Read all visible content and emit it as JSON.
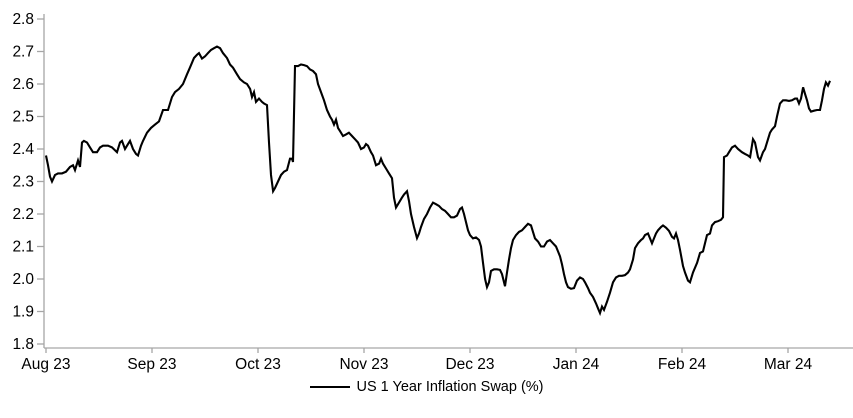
{
  "chart_data": {
    "type": "line",
    "title": "",
    "xlabel": "",
    "ylabel": "",
    "grid": false,
    "legend_position": "bottom-center",
    "axis_color": "#a6a6a6",
    "line_color": "#000000",
    "background_color": "#ffffff",
    "ylim": [
      1.8,
      2.8
    ],
    "y_tick_labels": [
      "1.8",
      "1.9",
      "2.0",
      "2.1",
      "2.2",
      "2.3",
      "2.4",
      "2.5",
      "2.6",
      "2.7",
      "2.8"
    ],
    "y_tick_values": [
      1.8,
      1.9,
      2.0,
      2.1,
      2.2,
      2.3,
      2.4,
      2.5,
      2.6,
      2.7,
      2.8
    ],
    "x_axis_unit": "months since Aug 2023",
    "x_range_months": [
      0,
      7.62
    ],
    "x_tick_positions_months": [
      0,
      1,
      2,
      3,
      4,
      5,
      6,
      7
    ],
    "x_tick_labels": [
      "Aug 23",
      "Sep 23",
      "Oct 23",
      "Nov 23",
      "Dec 23",
      "Jan 24",
      "Feb 24",
      "Mar 24"
    ],
    "series": [
      {
        "name": "US 1 Year Inflation Swap (%)",
        "color": "#000000",
        "points": [
          [
            0,
            2.38
          ],
          [
            0.019,
            2.35
          ],
          [
            0.038,
            2.315
          ],
          [
            0.057,
            2.3
          ],
          [
            0.085,
            2.32
          ],
          [
            0.113,
            2.325
          ],
          [
            0.151,
            2.325
          ],
          [
            0.189,
            2.33
          ],
          [
            0.226,
            2.345
          ],
          [
            0.255,
            2.35
          ],
          [
            0.274,
            2.335
          ],
          [
            0.302,
            2.365
          ],
          [
            0.321,
            2.345
          ],
          [
            0.34,
            2.42
          ],
          [
            0.358,
            2.425
          ],
          [
            0.387,
            2.42
          ],
          [
            0.415,
            2.405
          ],
          [
            0.443,
            2.39
          ],
          [
            0.481,
            2.39
          ],
          [
            0.509,
            2.405
          ],
          [
            0.538,
            2.41
          ],
          [
            0.585,
            2.41
          ],
          [
            0.623,
            2.405
          ],
          [
            0.67,
            2.39
          ],
          [
            0.698,
            2.42
          ],
          [
            0.717,
            2.425
          ],
          [
            0.745,
            2.4
          ],
          [
            0.774,
            2.415
          ],
          [
            0.792,
            2.425
          ],
          [
            0.821,
            2.4
          ],
          [
            0.849,
            2.385
          ],
          [
            0.868,
            2.38
          ],
          [
            0.896,
            2.41
          ],
          [
            0.915,
            2.425
          ],
          [
            0.953,
            2.45
          ],
          [
            0.991,
            2.465
          ],
          [
            1.028,
            2.475
          ],
          [
            1.066,
            2.485
          ],
          [
            1.104,
            2.52
          ],
          [
            1.151,
            2.52
          ],
          [
            1.189,
            2.56
          ],
          [
            1.217,
            2.575
          ],
          [
            1.255,
            2.585
          ],
          [
            1.292,
            2.6
          ],
          [
            1.33,
            2.63
          ],
          [
            1.358,
            2.65
          ],
          [
            1.396,
            2.68
          ],
          [
            1.425,
            2.69
          ],
          [
            1.443,
            2.695
          ],
          [
            1.472,
            2.678
          ],
          [
            1.5,
            2.685
          ],
          [
            1.528,
            2.695
          ],
          [
            1.557,
            2.705
          ],
          [
            1.585,
            2.71
          ],
          [
            1.613,
            2.715
          ],
          [
            1.642,
            2.71
          ],
          [
            1.67,
            2.695
          ],
          [
            1.708,
            2.68
          ],
          [
            1.736,
            2.66
          ],
          [
            1.764,
            2.65
          ],
          [
            1.802,
            2.63
          ],
          [
            1.83,
            2.615
          ],
          [
            1.868,
            2.605
          ],
          [
            1.896,
            2.6
          ],
          [
            1.925,
            2.585
          ],
          [
            1.943,
            2.56
          ],
          [
            1.962,
            2.575
          ],
          [
            1.981,
            2.545
          ],
          [
            2.009,
            2.555
          ],
          [
            2.038,
            2.545
          ],
          [
            2.057,
            2.54
          ],
          [
            2.085,
            2.535
          ],
          [
            2.104,
            2.42
          ],
          [
            2.123,
            2.32
          ],
          [
            2.142,
            2.27
          ],
          [
            2.16,
            2.28
          ],
          [
            2.189,
            2.3
          ],
          [
            2.217,
            2.32
          ],
          [
            2.245,
            2.33
          ],
          [
            2.274,
            2.335
          ],
          [
            2.302,
            2.37
          ],
          [
            2.321,
            2.37
          ],
          [
            2.33,
            2.36
          ],
          [
            2.349,
            2.655
          ],
          [
            2.377,
            2.655
          ],
          [
            2.406,
            2.66
          ],
          [
            2.434,
            2.658
          ],
          [
            2.462,
            2.655
          ],
          [
            2.491,
            2.645
          ],
          [
            2.519,
            2.64
          ],
          [
            2.547,
            2.63
          ],
          [
            2.566,
            2.6
          ],
          [
            2.594,
            2.575
          ],
          [
            2.623,
            2.55
          ],
          [
            2.651,
            2.52
          ],
          [
            2.679,
            2.5
          ],
          [
            2.698,
            2.49
          ],
          [
            2.717,
            2.475
          ],
          [
            2.736,
            2.49
          ],
          [
            2.755,
            2.465
          ],
          [
            2.774,
            2.455
          ],
          [
            2.802,
            2.44
          ],
          [
            2.83,
            2.445
          ],
          [
            2.858,
            2.45
          ],
          [
            2.887,
            2.44
          ],
          [
            2.915,
            2.43
          ],
          [
            2.943,
            2.42
          ],
          [
            2.972,
            2.4
          ],
          [
            3,
            2.405
          ],
          [
            3.019,
            2.415
          ],
          [
            3.038,
            2.41
          ],
          [
            3.066,
            2.39
          ],
          [
            3.085,
            2.38
          ],
          [
            3.113,
            2.35
          ],
          [
            3.142,
            2.355
          ],
          [
            3.16,
            2.37
          ],
          [
            3.179,
            2.355
          ],
          [
            3.208,
            2.34
          ],
          [
            3.236,
            2.325
          ],
          [
            3.264,
            2.31
          ],
          [
            3.283,
            2.25
          ],
          [
            3.302,
            2.22
          ],
          [
            3.33,
            2.235
          ],
          [
            3.358,
            2.25
          ],
          [
            3.377,
            2.26
          ],
          [
            3.406,
            2.27
          ],
          [
            3.425,
            2.24
          ],
          [
            3.443,
            2.2
          ],
          [
            3.472,
            2.16
          ],
          [
            3.5,
            2.126
          ],
          [
            3.519,
            2.14
          ],
          [
            3.538,
            2.16
          ],
          [
            3.566,
            2.185
          ],
          [
            3.594,
            2.2
          ],
          [
            3.623,
            2.22
          ],
          [
            3.651,
            2.235
          ],
          [
            3.679,
            2.23
          ],
          [
            3.708,
            2.225
          ],
          [
            3.736,
            2.215
          ],
          [
            3.764,
            2.21
          ],
          [
            3.792,
            2.2
          ],
          [
            3.821,
            2.19
          ],
          [
            3.849,
            2.19
          ],
          [
            3.877,
            2.195
          ],
          [
            3.906,
            2.215
          ],
          [
            3.925,
            2.22
          ],
          [
            3.943,
            2.2
          ],
          [
            3.962,
            2.175
          ],
          [
            3.981,
            2.15
          ],
          [
            4,
            2.135
          ],
          [
            4.028,
            2.125
          ],
          [
            4.057,
            2.128
          ],
          [
            4.085,
            2.12
          ],
          [
            4.104,
            2.1
          ],
          [
            4.123,
            2.05
          ],
          [
            4.142,
            2
          ],
          [
            4.16,
            1.975
          ],
          [
            4.179,
            1.99
          ],
          [
            4.198,
            2.025
          ],
          [
            4.226,
            2.03
          ],
          [
            4.255,
            2.03
          ],
          [
            4.283,
            2.028
          ],
          [
            4.302,
            2.015
          ],
          [
            4.33,
            1.978
          ],
          [
            4.349,
            2.02
          ],
          [
            4.368,
            2.06
          ],
          [
            4.387,
            2.095
          ],
          [
            4.406,
            2.12
          ],
          [
            4.434,
            2.135
          ],
          [
            4.462,
            2.145
          ],
          [
            4.491,
            2.15
          ],
          [
            4.519,
            2.16
          ],
          [
            4.547,
            2.17
          ],
          [
            4.575,
            2.165
          ],
          [
            4.594,
            2.145
          ],
          [
            4.613,
            2.125
          ],
          [
            4.642,
            2.115
          ],
          [
            4.67,
            2.1
          ],
          [
            4.698,
            2.1
          ],
          [
            4.726,
            2.115
          ],
          [
            4.755,
            2.12
          ],
          [
            4.783,
            2.11
          ],
          [
            4.811,
            2.1
          ],
          [
            4.83,
            2.085
          ],
          [
            4.849,
            2.07
          ],
          [
            4.868,
            2.045
          ],
          [
            4.887,
            2.015
          ],
          [
            4.906,
            1.99
          ],
          [
            4.925,
            1.975
          ],
          [
            4.953,
            1.97
          ],
          [
            4.981,
            1.972
          ],
          [
            5.009,
            1.995
          ],
          [
            5.038,
            2.005
          ],
          [
            5.066,
            2
          ],
          [
            5.085,
            1.99
          ],
          [
            5.113,
            1.972
          ],
          [
            5.132,
            1.958
          ],
          [
            5.16,
            1.945
          ],
          [
            5.189,
            1.925
          ],
          [
            5.208,
            1.91
          ],
          [
            5.226,
            1.895
          ],
          [
            5.245,
            1.915
          ],
          [
            5.264,
            1.905
          ],
          [
            5.292,
            1.93
          ],
          [
            5.321,
            1.958
          ],
          [
            5.349,
            1.99
          ],
          [
            5.377,
            2.005
          ],
          [
            5.406,
            2.01
          ],
          [
            5.434,
            2.01
          ],
          [
            5.462,
            2.012
          ],
          [
            5.491,
            2.02
          ],
          [
            5.509,
            2.03
          ],
          [
            5.538,
            2.06
          ],
          [
            5.557,
            2.095
          ],
          [
            5.585,
            2.11
          ],
          [
            5.613,
            2.12
          ],
          [
            5.632,
            2.125
          ],
          [
            5.651,
            2.135
          ],
          [
            5.679,
            2.14
          ],
          [
            5.698,
            2.125
          ],
          [
            5.717,
            2.11
          ],
          [
            5.736,
            2.125
          ],
          [
            5.755,
            2.14
          ],
          [
            5.774,
            2.15
          ],
          [
            5.802,
            2.16
          ],
          [
            5.821,
            2.165
          ],
          [
            5.849,
            2.158
          ],
          [
            5.877,
            2.148
          ],
          [
            5.906,
            2.13
          ],
          [
            5.925,
            2.125
          ],
          [
            5.943,
            2.14
          ],
          [
            5.962,
            2.12
          ],
          [
            5.981,
            2.09
          ],
          [
            6.009,
            2.04
          ],
          [
            6.028,
            2.02
          ],
          [
            6.057,
            1.995
          ],
          [
            6.075,
            1.99
          ],
          [
            6.104,
            2.02
          ],
          [
            6.142,
            2.05
          ],
          [
            6.17,
            2.08
          ],
          [
            6.198,
            2.085
          ],
          [
            6.217,
            2.11
          ],
          [
            6.236,
            2.135
          ],
          [
            6.264,
            2.14
          ],
          [
            6.283,
            2.165
          ],
          [
            6.311,
            2.175
          ],
          [
            6.34,
            2.178
          ],
          [
            6.368,
            2.182
          ],
          [
            6.387,
            2.19
          ],
          [
            6.396,
            2.375
          ],
          [
            6.425,
            2.38
          ],
          [
            6.443,
            2.39
          ],
          [
            6.472,
            2.405
          ],
          [
            6.5,
            2.41
          ],
          [
            6.528,
            2.4
          ],
          [
            6.566,
            2.39
          ],
          [
            6.594,
            2.385
          ],
          [
            6.623,
            2.38
          ],
          [
            6.642,
            2.375
          ],
          [
            6.67,
            2.43
          ],
          [
            6.689,
            2.42
          ],
          [
            6.717,
            2.375
          ],
          [
            6.736,
            2.365
          ],
          [
            6.764,
            2.39
          ],
          [
            6.783,
            2.4
          ],
          [
            6.811,
            2.43
          ],
          [
            6.83,
            2.45
          ],
          [
            6.849,
            2.46
          ],
          [
            6.877,
            2.47
          ],
          [
            6.896,
            2.5
          ],
          [
            6.925,
            2.54
          ],
          [
            6.953,
            2.55
          ],
          [
            6.981,
            2.55
          ],
          [
            7.009,
            2.548
          ],
          [
            7.038,
            2.55
          ],
          [
            7.066,
            2.555
          ],
          [
            7.085,
            2.555
          ],
          [
            7.104,
            2.54
          ],
          [
            7.123,
            2.555
          ],
          [
            7.142,
            2.59
          ],
          [
            7.16,
            2.57
          ],
          [
            7.179,
            2.55
          ],
          [
            7.198,
            2.525
          ],
          [
            7.217,
            2.515
          ],
          [
            7.245,
            2.518
          ],
          [
            7.274,
            2.52
          ],
          [
            7.302,
            2.52
          ],
          [
            7.321,
            2.55
          ],
          [
            7.34,
            2.585
          ],
          [
            7.358,
            2.605
          ],
          [
            7.377,
            2.595
          ],
          [
            7.396,
            2.61
          ]
        ]
      }
    ]
  },
  "legend": {
    "label": "US 1 Year Inflation Swap (%)"
  }
}
